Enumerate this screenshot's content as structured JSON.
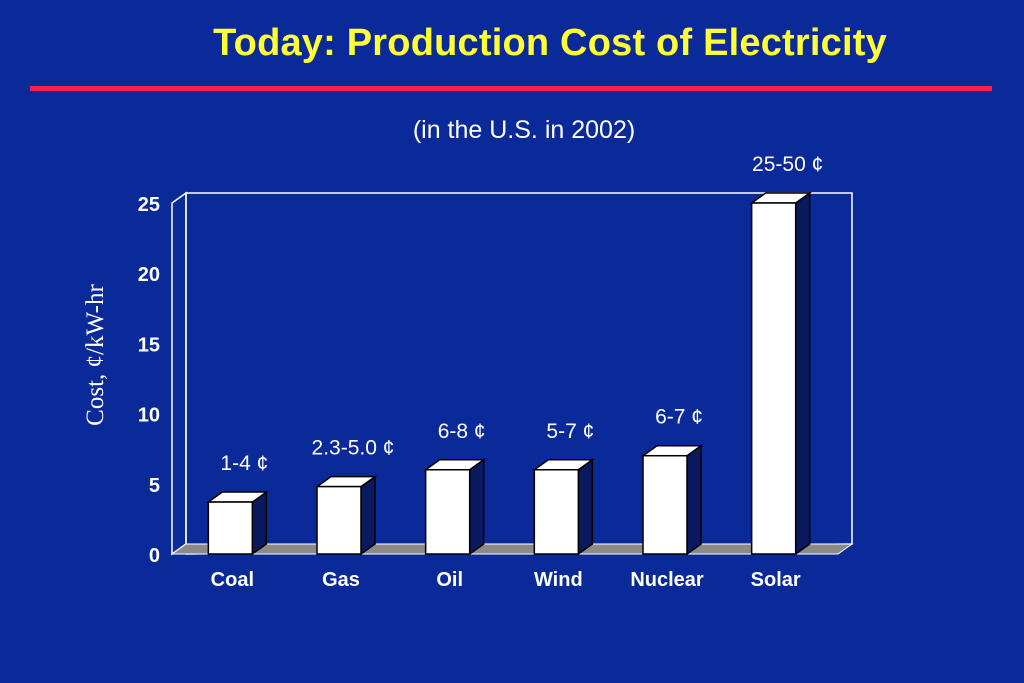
{
  "slide": {
    "title": "Today:  Production Cost of Electricity",
    "subtitle": "(in the U.S. in 2002)"
  },
  "colors": {
    "background": "#0b2a9a",
    "title": "#ffff33",
    "rule": "#ff1f4b",
    "bar_front": "#ffffff",
    "bar_side": "#0a1a5e",
    "floor": "#8a8a8a"
  },
  "chart_data": {
    "type": "bar",
    "title": "",
    "xlabel": "",
    "ylabel": "Cost, ¢/kW-hr",
    "categories": [
      "Coal",
      "Gas",
      "Oil",
      "Wind",
      "Nuclear",
      "Solar"
    ],
    "values": [
      3.7,
      4.8,
      6.0,
      6.0,
      7.0,
      25.0
    ],
    "data_labels": [
      "1-4 ¢",
      "2.3-5.0 ¢",
      "6-8 ¢",
      "5-7 ¢",
      "6-7 ¢",
      "25-50 ¢"
    ],
    "yticks": [
      0,
      5,
      10,
      15,
      20,
      25
    ],
    "ylim": [
      0,
      25
    ],
    "grid": false,
    "style": "3d-bar"
  }
}
